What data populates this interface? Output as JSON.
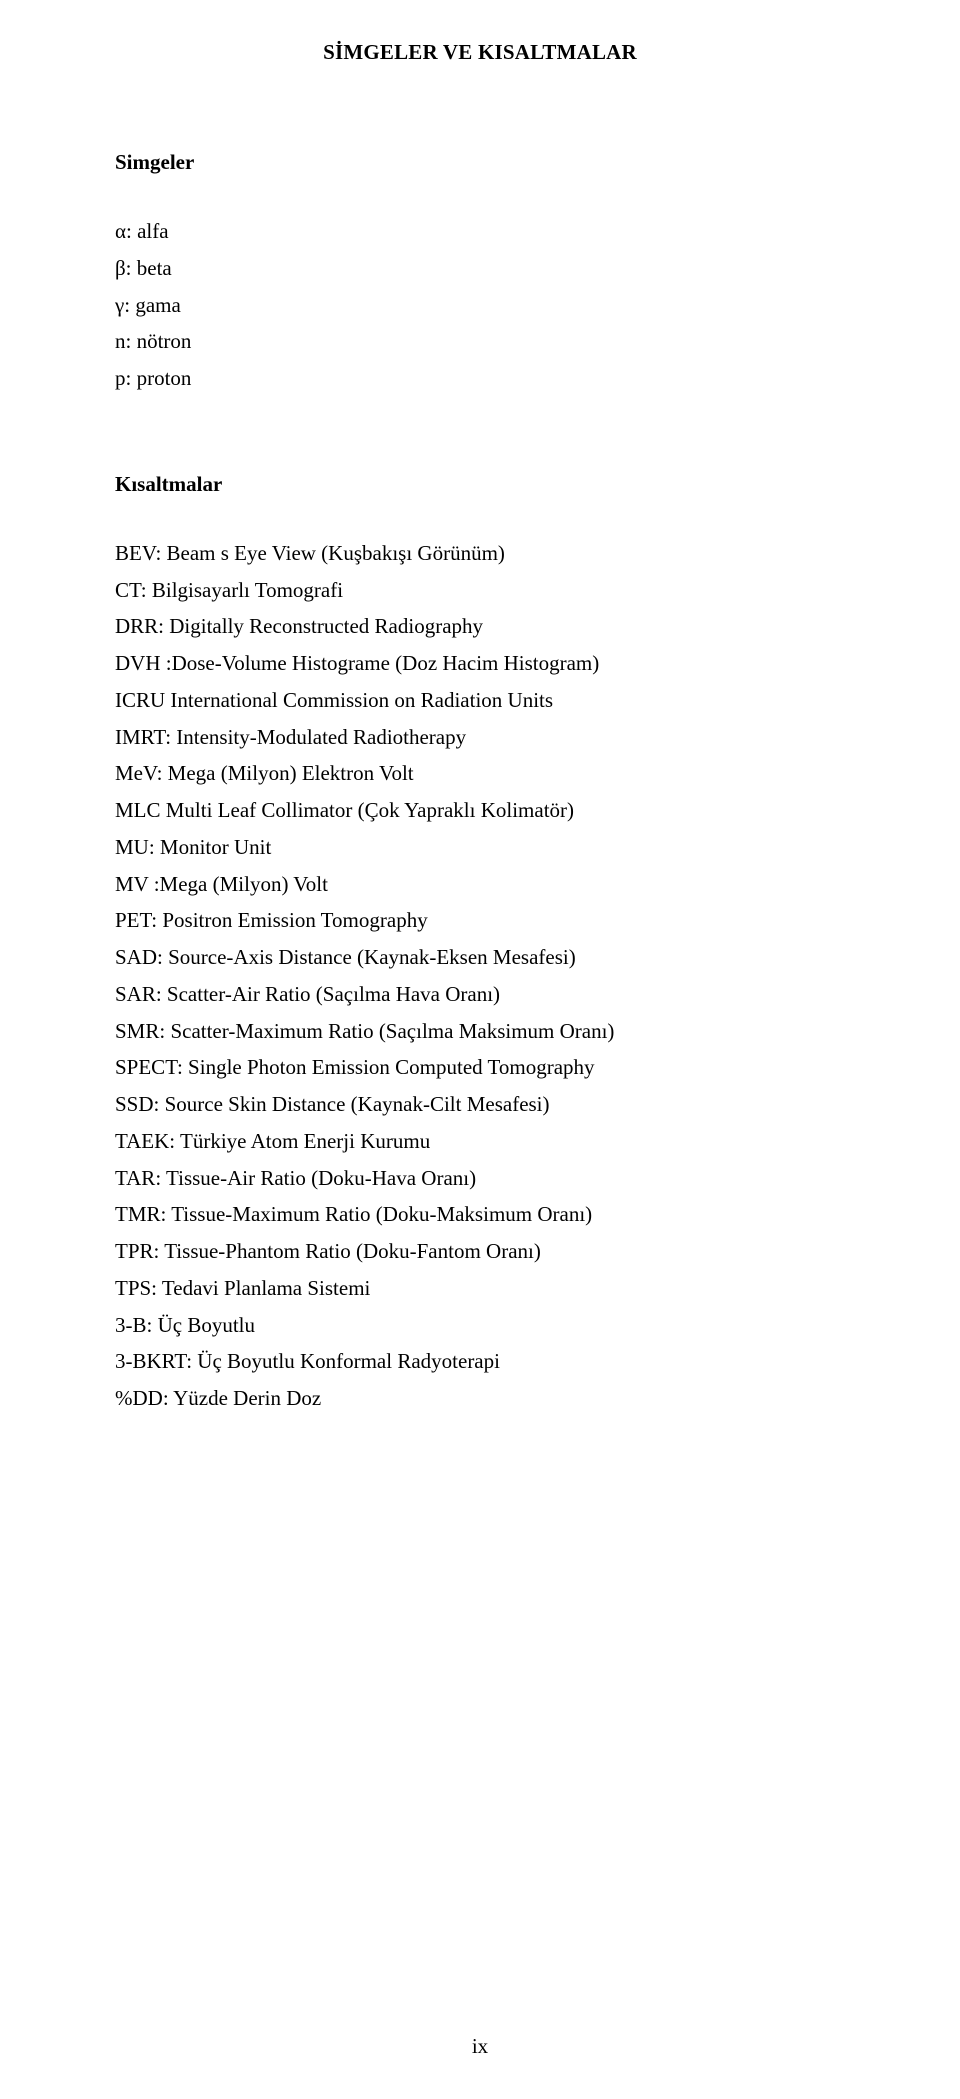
{
  "heading": "SİMGELER VE KISALTMALAR",
  "sections": {
    "simgeler": {
      "title": "Simgeler",
      "items": [
        "α: alfa",
        "β: beta",
        "γ: gama",
        "n: nötron",
        "p: proton"
      ]
    },
    "kisaltmalar": {
      "title": "Kısaltmalar",
      "items": [
        "BEV: Beam s Eye View (Kuşbakışı Görünüm)",
        "CT: Bilgisayarlı Tomografi",
        "DRR: Digitally Reconstructed Radiography",
        "DVH :Dose-Volume Histograme (Doz Hacim Histogram)",
        "ICRU International Commission on Radiation Units",
        "IMRT: Intensity-Modulated Radiotherapy",
        "MeV: Mega (Milyon) Elektron Volt",
        "MLC Multi Leaf Collimator (Çok Yapraklı Kolimatör)",
        "MU: Monitor Unit",
        "MV :Mega (Milyon) Volt",
        "PET: Positron Emission Tomography",
        "SAD: Source-Axis Distance (Kaynak-Eksen Mesafesi)",
        "SAR: Scatter-Air Ratio (Saçılma Hava Oranı)",
        "SMR: Scatter-Maximum Ratio (Saçılma Maksimum Oranı)",
        "SPECT: Single Photon Emission Computed Tomography",
        "SSD: Source Skin Distance (Kaynak-Cilt Mesafesi)",
        "TAEK: Türkiye Atom Enerji Kurumu",
        "TAR: Tissue-Air Ratio (Doku-Hava Oranı)",
        "TMR: Tissue-Maximum Ratio (Doku-Maksimum Oranı)",
        "TPR: Tissue-Phantom Ratio (Doku-Fantom Oranı)",
        "TPS: Tedavi Planlama Sistemi",
        "3-B: Üç Boyutlu",
        "3-BKRT: Üç Boyutlu Konformal Radyoterapi",
        "%DD: Yüzde Derin Doz"
      ]
    }
  },
  "page_number": "ix",
  "style": {
    "font_family": "Times New Roman",
    "background_color": "#ffffff",
    "text_color": "#000000",
    "title_fontsize": 21,
    "body_fontsize": 21,
    "line_height": 1.75
  }
}
